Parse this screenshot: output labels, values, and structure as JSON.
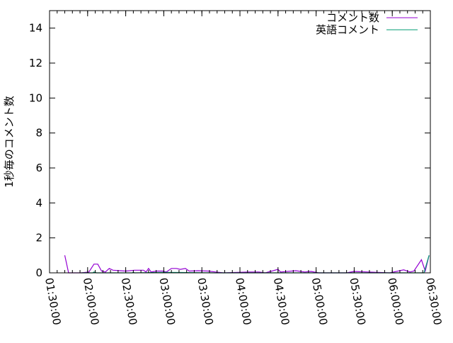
{
  "chart_data": {
    "type": "line",
    "title": "",
    "xlabel": "",
    "ylabel": "1秒毎のコメント数",
    "xlim": [
      "01:30:00",
      "06:30:00"
    ],
    "ylim": [
      0,
      15
    ],
    "x_ticks": [
      "01:30:00",
      "02:00:00",
      "02:30:00",
      "03:00:00",
      "03:30:00",
      "04:00:00",
      "04:30:00",
      "05:00:00",
      "05:30:00",
      "06:00:00",
      "06:30:00"
    ],
    "y_ticks": [
      0,
      2,
      4,
      6,
      8,
      10,
      12,
      14
    ],
    "grid": false,
    "legend_position": "top-right",
    "series": [
      {
        "name": "コメント数",
        "color": "#9400d3",
        "points": [
          [
            "01:42:00",
            1.0
          ],
          [
            "01:45:00",
            0
          ],
          [
            "01:55:00",
            0
          ],
          [
            "02:01:00",
            0.05
          ],
          [
            "02:05:00",
            0.5
          ],
          [
            "02:08:00",
            0.5
          ],
          [
            "02:11:00",
            0.1
          ],
          [
            "02:14:00",
            0.05
          ],
          [
            "02:17:00",
            0.25
          ],
          [
            "02:20:00",
            0.15
          ],
          [
            "02:26:00",
            0.12
          ],
          [
            "02:30:00",
            0.1
          ],
          [
            "02:37:00",
            0.15
          ],
          [
            "02:44:00",
            0.15
          ],
          [
            "02:46:00",
            0.05
          ],
          [
            "02:48:00",
            0.25
          ],
          [
            "02:50:00",
            0.05
          ],
          [
            "02:54:00",
            0.1
          ],
          [
            "02:59:00",
            0.1
          ],
          [
            "03:02:00",
            0.05
          ],
          [
            "03:06:00",
            0.25
          ],
          [
            "03:10:00",
            0.25
          ],
          [
            "03:13:00",
            0.2
          ],
          [
            "03:17:00",
            0.25
          ],
          [
            "03:20:00",
            0.1
          ],
          [
            "03:27:00",
            0.12
          ],
          [
            "03:35:00",
            0.1
          ],
          [
            "03:41:00",
            0.05
          ],
          [
            "03:47:00",
            0
          ],
          [
            "04:07:00",
            0.05
          ],
          [
            "04:15:00",
            0.05
          ],
          [
            "04:20:00",
            0
          ],
          [
            "04:30:00",
            0.2
          ],
          [
            "04:32:00",
            0.05
          ],
          [
            "04:44:00",
            0.12
          ],
          [
            "04:51:00",
            0.05
          ],
          [
            "04:56:00",
            0.08
          ],
          [
            "05:02:00",
            0
          ],
          [
            "05:24:00",
            0
          ],
          [
            "05:30:00",
            0.08
          ],
          [
            "05:41:00",
            0.05
          ],
          [
            "05:58:00",
            0
          ],
          [
            "06:09:00",
            0.17
          ],
          [
            "06:14:00",
            0.05
          ],
          [
            "06:17:00",
            0.1
          ],
          [
            "06:23:00",
            0.75
          ],
          [
            "06:26:00",
            0.1
          ],
          [
            "06:29:00",
            1.0
          ]
        ]
      },
      {
        "name": "英語コメント",
        "color": "#009e73",
        "points": [
          [
            "01:55:00",
            0
          ],
          [
            "02:04:00",
            0
          ],
          [
            "02:05:00",
            0.05
          ],
          [
            "02:07:00",
            0
          ],
          [
            "02:35:00",
            0
          ],
          [
            "02:36:00",
            0.04
          ],
          [
            "02:37:00",
            0
          ],
          [
            "03:00:00",
            0.03
          ],
          [
            "03:40:00",
            0
          ],
          [
            "06:25:00",
            0
          ],
          [
            "06:29:00",
            1.0
          ]
        ]
      }
    ]
  }
}
